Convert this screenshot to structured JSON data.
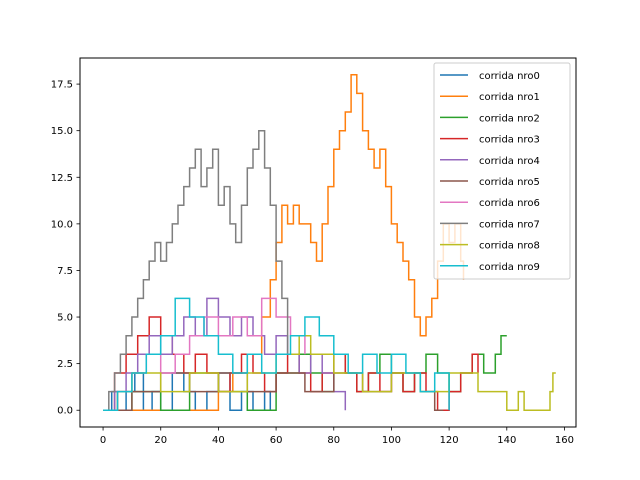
{
  "chart_data": {
    "type": "line",
    "step": true,
    "title": "",
    "xlabel": "",
    "ylabel": "",
    "xlim": [
      -8,
      164
    ],
    "ylim": [
      -0.9,
      18.9
    ],
    "xticks": [
      0,
      20,
      40,
      60,
      80,
      100,
      120,
      140,
      160
    ],
    "yticks": [
      0.0,
      2.5,
      5.0,
      7.5,
      10.0,
      12.5,
      15.0,
      17.5
    ],
    "grid": false,
    "legend_position": "top-right",
    "series": [
      {
        "name": "corrida nro0",
        "color": "#1f77b4",
        "x": [
          0,
          3,
          5,
          8,
          11,
          14,
          17,
          20,
          24,
          28,
          32,
          36,
          40,
          44,
          48,
          52,
          56,
          58
        ],
        "y": [
          0,
          1,
          0,
          1,
          2,
          0,
          1,
          0,
          2,
          1,
          0,
          1,
          2,
          0,
          1,
          0,
          1,
          0
        ]
      },
      {
        "name": "corrida nro1",
        "color": "#ff7f0e",
        "x": [
          0,
          40,
          45,
          50,
          55,
          58,
          60,
          62,
          64,
          66,
          68,
          72,
          74,
          76,
          78,
          80,
          82,
          84,
          86,
          88,
          90,
          92,
          94,
          96,
          98,
          100,
          102,
          104,
          106,
          108,
          110,
          112,
          114,
          116,
          118,
          120,
          122,
          124,
          125
        ],
        "y": [
          0,
          1,
          2,
          3,
          5,
          7,
          9,
          11,
          10,
          11,
          10,
          9,
          8,
          10,
          12,
          14,
          15,
          16,
          18,
          17,
          15,
          14,
          13,
          14,
          12,
          10,
          9,
          8,
          7,
          5,
          4,
          5,
          6,
          8,
          10,
          9,
          10,
          8,
          7
        ]
      },
      {
        "name": "corrida nro2",
        "color": "#2ca02c",
        "x": [
          0,
          10,
          20,
          30,
          40,
          50,
          60,
          68,
          72,
          76,
          80,
          84,
          88,
          92,
          96,
          100,
          104,
          108,
          112,
          116,
          120,
          124,
          128,
          132,
          136,
          138,
          140
        ],
        "y": [
          0,
          1,
          0,
          2,
          1,
          0,
          2,
          3,
          2,
          1,
          3,
          2,
          1,
          2,
          3,
          2,
          1,
          2,
          3,
          2,
          1,
          2,
          3,
          2,
          3,
          4,
          4
        ]
      },
      {
        "name": "corrida nro3",
        "color": "#d62728",
        "x": [
          0,
          4,
          8,
          12,
          16,
          20,
          24,
          28,
          32,
          36,
          40,
          44,
          48,
          52,
          56,
          60,
          64,
          68,
          72,
          76,
          80,
          84,
          88,
          92,
          96,
          100,
          104,
          108,
          112,
          116,
          120,
          124,
          128,
          130
        ],
        "y": [
          0,
          2,
          3,
          4,
          5,
          4,
          3,
          2,
          3,
          2,
          1,
          2,
          3,
          2,
          1,
          2,
          3,
          2,
          1,
          2,
          3,
          2,
          1,
          2,
          1,
          2,
          1,
          2,
          1,
          0,
          1,
          2,
          3,
          2
        ]
      },
      {
        "name": "corrida nro4",
        "color": "#9467bd",
        "x": [
          0,
          4,
          8,
          12,
          16,
          20,
          24,
          28,
          32,
          36,
          40,
          44,
          48,
          52,
          56,
          60,
          64,
          68,
          72,
          76,
          80,
          84
        ],
        "y": [
          0,
          1,
          2,
          3,
          4,
          3,
          4,
          5,
          4,
          6,
          5,
          4,
          5,
          4,
          3,
          4,
          3,
          2,
          3,
          2,
          1,
          0
        ]
      },
      {
        "name": "corrida nro5",
        "color": "#8c564b",
        "x": [
          0,
          10,
          20,
          30,
          40,
          50,
          60,
          70,
          80,
          90,
          100,
          110,
          115,
          118
        ],
        "y": [
          0,
          1,
          2,
          1,
          2,
          1,
          2,
          1,
          2,
          1,
          2,
          1,
          0,
          0
        ]
      },
      {
        "name": "corrida nro6",
        "color": "#e377c2",
        "x": [
          0,
          5,
          10,
          15,
          20,
          25,
          30,
          35,
          40,
          45,
          50,
          55,
          60,
          65,
          70
        ],
        "y": [
          0,
          1,
          2,
          3,
          2,
          3,
          4,
          5,
          4,
          5,
          4,
          6,
          5,
          4,
          3
        ]
      },
      {
        "name": "corrida nro7",
        "color": "#7f7f7f",
        "x": [
          0,
          2,
          4,
          6,
          8,
          10,
          12,
          14,
          16,
          18,
          20,
          22,
          24,
          26,
          28,
          30,
          32,
          34,
          36,
          38,
          40,
          42,
          44,
          46,
          48,
          50,
          52,
          54,
          56,
          58,
          60,
          62,
          64
        ],
        "y": [
          0,
          1,
          2,
          3,
          4,
          5,
          6,
          7,
          8,
          9,
          8,
          9,
          10,
          11,
          12,
          13,
          14,
          12,
          13,
          14,
          11,
          12,
          10,
          9,
          11,
          13,
          14,
          15,
          13,
          11,
          8,
          6,
          3
        ]
      },
      {
        "name": "corrida nro8",
        "color": "#bcbd22",
        "x": [
          0,
          5,
          10,
          20,
          30,
          40,
          50,
          60,
          68,
          72,
          80,
          90,
          100,
          110,
          120,
          130,
          140,
          144,
          146,
          150,
          155,
          156,
          157
        ],
        "y": [
          0,
          1,
          2,
          1,
          2,
          1,
          2,
          3,
          4,
          3,
          2,
          1,
          2,
          1,
          2,
          1,
          0,
          1,
          0,
          0,
          1,
          2,
          2
        ]
      },
      {
        "name": "corrida nro9",
        "color": "#17becf",
        "x": [
          0,
          5,
          10,
          15,
          20,
          25,
          30,
          35,
          40,
          45,
          50,
          55,
          60,
          65,
          70,
          75,
          80,
          85,
          90,
          95,
          100,
          105,
          110,
          115,
          120
        ],
        "y": [
          0,
          1,
          2,
          3,
          4,
          6,
          5,
          4,
          3,
          2,
          3,
          2,
          3,
          4,
          5,
          4,
          3,
          2,
          3,
          2,
          3,
          2,
          1,
          2,
          0
        ]
      }
    ]
  }
}
